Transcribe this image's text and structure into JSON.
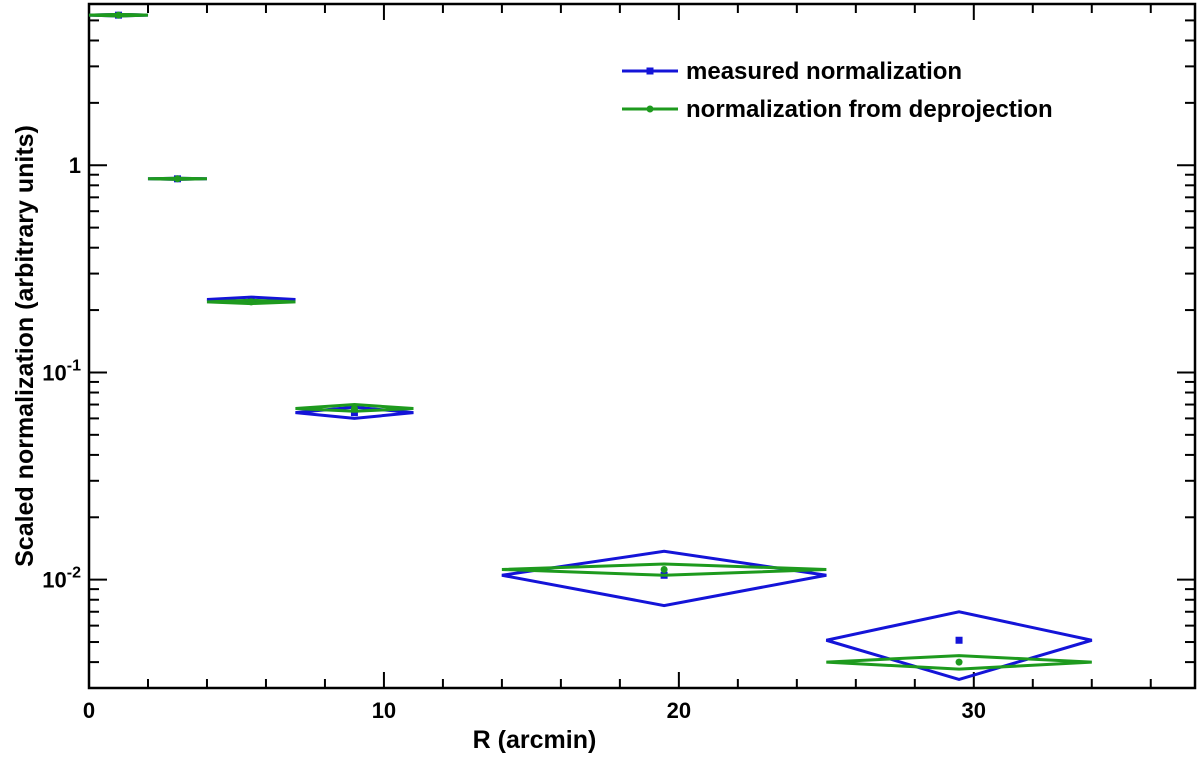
{
  "chart_data": {
    "type": "scatter",
    "xlabel": "R (arcmin)",
    "ylabel": "Scaled normalization (arbitrary units)",
    "xlim": [
      0,
      37.5
    ],
    "ylim": [
      0.003,
      6.0
    ],
    "yscale": "log",
    "grid": false,
    "legend_position": "top-right",
    "x_ticks": [
      {
        "value": 0,
        "label": "0"
      },
      {
        "value": 10,
        "label": "10"
      },
      {
        "value": 20,
        "label": "20"
      },
      {
        "value": 30,
        "label": "30"
      }
    ],
    "y_ticks": [
      {
        "value": 0.01,
        "base": "10",
        "exp": "-2"
      },
      {
        "value": 0.1,
        "base": "10",
        "exp": "-1"
      },
      {
        "value": 1,
        "base": "1",
        "exp": ""
      }
    ],
    "series": [
      {
        "name": "measured normalization",
        "color": "#1414d8",
        "marker": "square",
        "points": [
          {
            "x": 1.0,
            "xlo": 0.0,
            "xhi": 2.0,
            "y": 5.3,
            "ylo": 5.25,
            "yhi": 5.35
          },
          {
            "x": 3.0,
            "xlo": 2.0,
            "xhi": 4.0,
            "y": 0.86,
            "ylo": 0.855,
            "yhi": 0.865
          },
          {
            "x": 5.5,
            "xlo": 4.0,
            "xhi": 7.0,
            "y": 0.225,
            "ylo": 0.219,
            "yhi": 0.231
          },
          {
            "x": 9.0,
            "xlo": 7.0,
            "xhi": 11.0,
            "y": 0.064,
            "ylo": 0.06,
            "yhi": 0.068
          },
          {
            "x": 19.5,
            "xlo": 14.0,
            "xhi": 25.0,
            "y": 0.0105,
            "ylo": 0.0075,
            "yhi": 0.0137
          },
          {
            "x": 29.5,
            "xlo": 25.0,
            "xhi": 34.0,
            "y": 0.0051,
            "ylo": 0.0033,
            "yhi": 0.007
          }
        ]
      },
      {
        "name": "normalization from deprojection",
        "color": "#1e9a1e",
        "marker": "circle",
        "points": [
          {
            "x": 1.0,
            "xlo": 0.0,
            "xhi": 2.0,
            "y": 5.3,
            "ylo": 5.25,
            "yhi": 5.35
          },
          {
            "x": 3.0,
            "xlo": 2.0,
            "xhi": 4.0,
            "y": 0.86,
            "ylo": 0.855,
            "yhi": 0.865
          },
          {
            "x": 5.5,
            "xlo": 4.0,
            "xhi": 7.0,
            "y": 0.219,
            "ylo": 0.215,
            "yhi": 0.223
          },
          {
            "x": 9.0,
            "xlo": 7.0,
            "xhi": 11.0,
            "y": 0.067,
            "ylo": 0.065,
            "yhi": 0.07
          },
          {
            "x": 19.5,
            "xlo": 14.0,
            "xhi": 25.0,
            "y": 0.0112,
            "ylo": 0.0105,
            "yhi": 0.0119
          },
          {
            "x": 29.5,
            "xlo": 25.0,
            "xhi": 34.0,
            "y": 0.004,
            "ylo": 0.0037,
            "yhi": 0.0043
          }
        ]
      }
    ]
  }
}
